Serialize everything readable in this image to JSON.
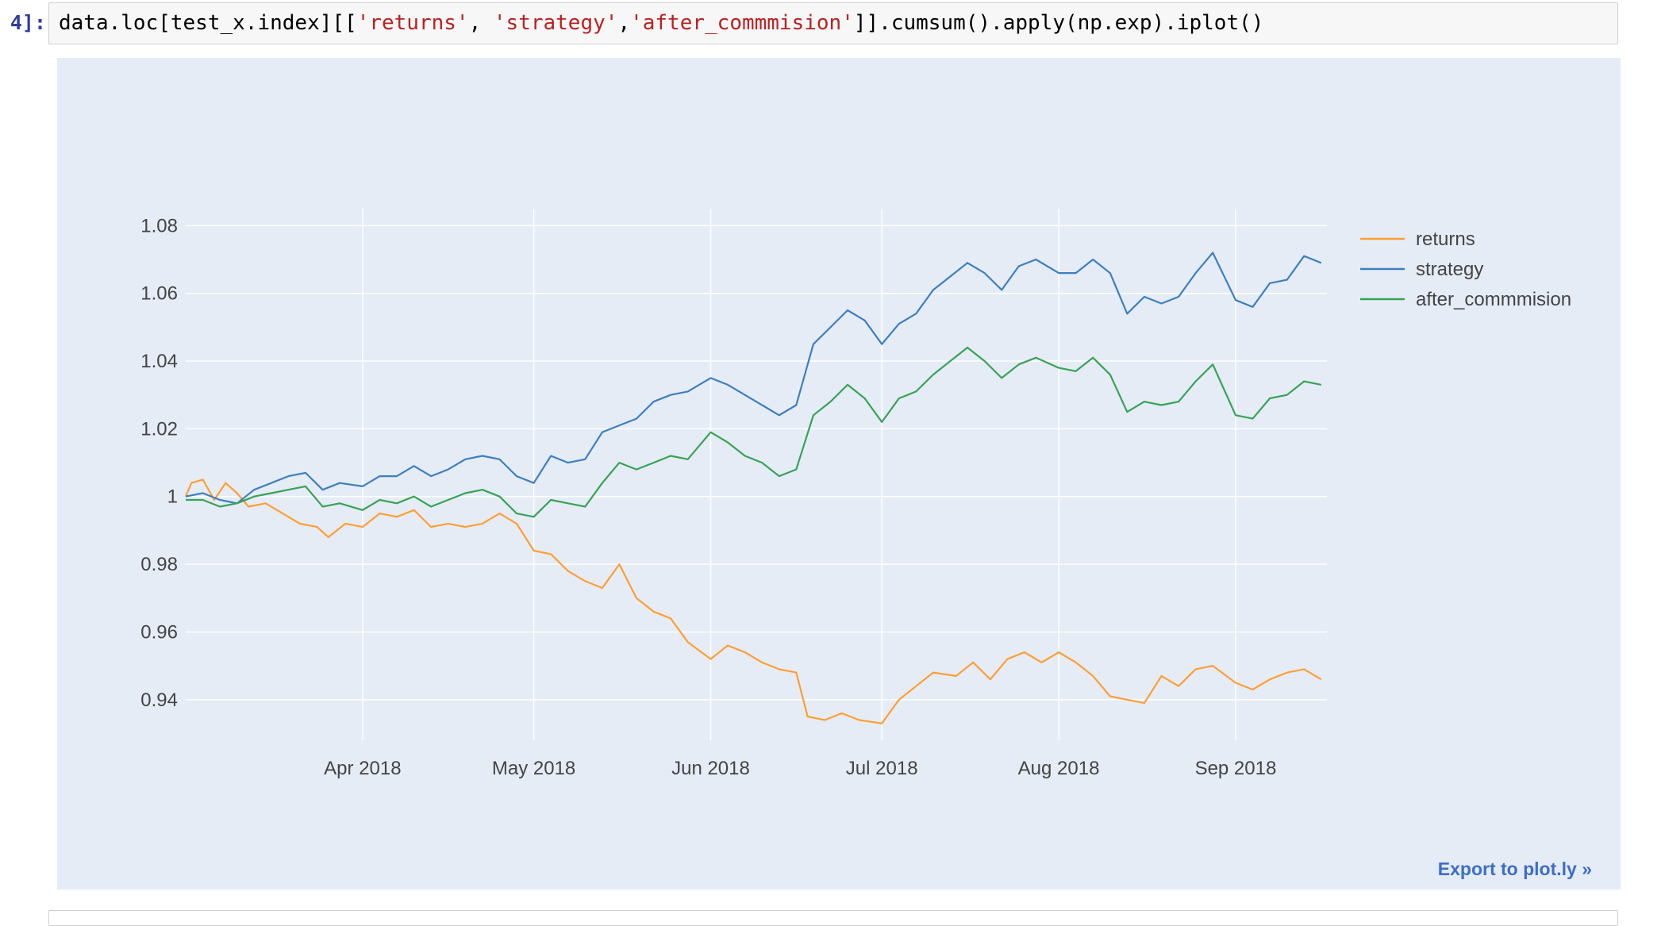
{
  "cell": {
    "prompt": "4]:",
    "code_parts": [
      {
        "text": "data.loc[test_x.index][[",
        "kind": "plain"
      },
      {
        "text": "'returns'",
        "kind": "str"
      },
      {
        "text": ", ",
        "kind": "plain"
      },
      {
        "text": "'strategy'",
        "kind": "str"
      },
      {
        "text": ",",
        "kind": "plain"
      },
      {
        "text": "'after_commmision'",
        "kind": "str"
      },
      {
        "text": "]].cumsum().apply(np.exp).iplot()",
        "kind": "plain"
      }
    ]
  },
  "export_label": "Export to plot.ly »",
  "colors": {
    "returns": "#ff9e33",
    "strategy": "#3d7fc0",
    "after_commmision": "#37a355",
    "plot_bg": "#e5ecf6",
    "grid": "#ffffff"
  },
  "chart_data": {
    "type": "line",
    "title": "",
    "xlabel": "",
    "ylabel": "",
    "x_range": [
      "2018-03-01",
      "2018-09-17"
    ],
    "ylim": [
      0.928,
      1.085
    ],
    "x_ticks": [
      {
        "date": "2018-04-01",
        "label": "Apr 2018"
      },
      {
        "date": "2018-05-01",
        "label": "May 2018"
      },
      {
        "date": "2018-06-01",
        "label": "Jun 2018"
      },
      {
        "date": "2018-07-01",
        "label": "Jul 2018"
      },
      {
        "date": "2018-08-01",
        "label": "Aug 2018"
      },
      {
        "date": "2018-09-01",
        "label": "Sep 2018"
      }
    ],
    "y_ticks": [
      {
        "value": 0.94,
        "label": "0.94"
      },
      {
        "value": 0.96,
        "label": "0.96"
      },
      {
        "value": 0.98,
        "label": "0.98"
      },
      {
        "value": 1.0,
        "label": "1"
      },
      {
        "value": 1.02,
        "label": "1.02"
      },
      {
        "value": 1.04,
        "label": "1.04"
      },
      {
        "value": 1.06,
        "label": "1.06"
      },
      {
        "value": 1.08,
        "label": "1.08"
      }
    ],
    "grid": true,
    "legend_position": "top-right",
    "series": [
      {
        "name": "returns",
        "points": [
          [
            "2018-03-01",
            1.0
          ],
          [
            "2018-03-02",
            1.004
          ],
          [
            "2018-03-04",
            1.005
          ],
          [
            "2018-03-06",
            0.999
          ],
          [
            "2018-03-08",
            1.004
          ],
          [
            "2018-03-10",
            1.001
          ],
          [
            "2018-03-12",
            0.997
          ],
          [
            "2018-03-15",
            0.998
          ],
          [
            "2018-03-18",
            0.995
          ],
          [
            "2018-03-21",
            0.992
          ],
          [
            "2018-03-24",
            0.991
          ],
          [
            "2018-03-26",
            0.988
          ],
          [
            "2018-03-29",
            0.992
          ],
          [
            "2018-04-01",
            0.991
          ],
          [
            "2018-04-04",
            0.995
          ],
          [
            "2018-04-07",
            0.994
          ],
          [
            "2018-04-10",
            0.996
          ],
          [
            "2018-04-13",
            0.991
          ],
          [
            "2018-04-16",
            0.992
          ],
          [
            "2018-04-19",
            0.991
          ],
          [
            "2018-04-22",
            0.992
          ],
          [
            "2018-04-25",
            0.995
          ],
          [
            "2018-04-28",
            0.992
          ],
          [
            "2018-05-01",
            0.984
          ],
          [
            "2018-05-04",
            0.983
          ],
          [
            "2018-05-07",
            0.978
          ],
          [
            "2018-05-10",
            0.975
          ],
          [
            "2018-05-13",
            0.973
          ],
          [
            "2018-05-16",
            0.98
          ],
          [
            "2018-05-19",
            0.97
          ],
          [
            "2018-05-22",
            0.966
          ],
          [
            "2018-05-25",
            0.964
          ],
          [
            "2018-05-28",
            0.957
          ],
          [
            "2018-06-01",
            0.952
          ],
          [
            "2018-06-04",
            0.956
          ],
          [
            "2018-06-07",
            0.954
          ],
          [
            "2018-06-10",
            0.951
          ],
          [
            "2018-06-13",
            0.949
          ],
          [
            "2018-06-16",
            0.948
          ],
          [
            "2018-06-18",
            0.935
          ],
          [
            "2018-06-21",
            0.934
          ],
          [
            "2018-06-24",
            0.936
          ],
          [
            "2018-06-27",
            0.934
          ],
          [
            "2018-07-01",
            0.933
          ],
          [
            "2018-07-04",
            0.94
          ],
          [
            "2018-07-07",
            0.944
          ],
          [
            "2018-07-10",
            0.948
          ],
          [
            "2018-07-14",
            0.947
          ],
          [
            "2018-07-17",
            0.951
          ],
          [
            "2018-07-20",
            0.946
          ],
          [
            "2018-07-23",
            0.952
          ],
          [
            "2018-07-26",
            0.954
          ],
          [
            "2018-07-29",
            0.951
          ],
          [
            "2018-08-01",
            0.954
          ],
          [
            "2018-08-04",
            0.951
          ],
          [
            "2018-08-07",
            0.947
          ],
          [
            "2018-08-10",
            0.941
          ],
          [
            "2018-08-13",
            0.94
          ],
          [
            "2018-08-16",
            0.939
          ],
          [
            "2018-08-19",
            0.947
          ],
          [
            "2018-08-22",
            0.944
          ],
          [
            "2018-08-25",
            0.949
          ],
          [
            "2018-08-28",
            0.95
          ],
          [
            "2018-09-01",
            0.945
          ],
          [
            "2018-09-04",
            0.943
          ],
          [
            "2018-09-07",
            0.946
          ],
          [
            "2018-09-10",
            0.948
          ],
          [
            "2018-09-13",
            0.949
          ],
          [
            "2018-09-16",
            0.946
          ]
        ]
      },
      {
        "name": "strategy",
        "points": [
          [
            "2018-03-01",
            1.0
          ],
          [
            "2018-03-04",
            1.001
          ],
          [
            "2018-03-07",
            0.999
          ],
          [
            "2018-03-10",
            0.998
          ],
          [
            "2018-03-13",
            1.002
          ],
          [
            "2018-03-16",
            1.004
          ],
          [
            "2018-03-19",
            1.006
          ],
          [
            "2018-03-22",
            1.007
          ],
          [
            "2018-03-25",
            1.002
          ],
          [
            "2018-03-28",
            1.004
          ],
          [
            "2018-04-01",
            1.003
          ],
          [
            "2018-04-04",
            1.006
          ],
          [
            "2018-04-07",
            1.006
          ],
          [
            "2018-04-10",
            1.009
          ],
          [
            "2018-04-13",
            1.006
          ],
          [
            "2018-04-16",
            1.008
          ],
          [
            "2018-04-19",
            1.011
          ],
          [
            "2018-04-22",
            1.012
          ],
          [
            "2018-04-25",
            1.011
          ],
          [
            "2018-04-28",
            1.006
          ],
          [
            "2018-05-01",
            1.004
          ],
          [
            "2018-05-04",
            1.012
          ],
          [
            "2018-05-07",
            1.01
          ],
          [
            "2018-05-10",
            1.011
          ],
          [
            "2018-05-13",
            1.019
          ],
          [
            "2018-05-16",
            1.021
          ],
          [
            "2018-05-19",
            1.023
          ],
          [
            "2018-05-22",
            1.028
          ],
          [
            "2018-05-25",
            1.03
          ],
          [
            "2018-05-28",
            1.031
          ],
          [
            "2018-06-01",
            1.035
          ],
          [
            "2018-06-04",
            1.033
          ],
          [
            "2018-06-07",
            1.03
          ],
          [
            "2018-06-10",
            1.027
          ],
          [
            "2018-06-13",
            1.024
          ],
          [
            "2018-06-16",
            1.027
          ],
          [
            "2018-06-19",
            1.045
          ],
          [
            "2018-06-22",
            1.05
          ],
          [
            "2018-06-25",
            1.055
          ],
          [
            "2018-06-28",
            1.052
          ],
          [
            "2018-07-01",
            1.045
          ],
          [
            "2018-07-04",
            1.051
          ],
          [
            "2018-07-07",
            1.054
          ],
          [
            "2018-07-10",
            1.061
          ],
          [
            "2018-07-13",
            1.065
          ],
          [
            "2018-07-16",
            1.069
          ],
          [
            "2018-07-19",
            1.066
          ],
          [
            "2018-07-22",
            1.061
          ],
          [
            "2018-07-25",
            1.068
          ],
          [
            "2018-07-28",
            1.07
          ],
          [
            "2018-08-01",
            1.066
          ],
          [
            "2018-08-04",
            1.066
          ],
          [
            "2018-08-07",
            1.07
          ],
          [
            "2018-08-10",
            1.066
          ],
          [
            "2018-08-13",
            1.054
          ],
          [
            "2018-08-16",
            1.059
          ],
          [
            "2018-08-19",
            1.057
          ],
          [
            "2018-08-22",
            1.059
          ],
          [
            "2018-08-25",
            1.066
          ],
          [
            "2018-08-28",
            1.072
          ],
          [
            "2018-09-01",
            1.058
          ],
          [
            "2018-09-04",
            1.056
          ],
          [
            "2018-09-07",
            1.063
          ],
          [
            "2018-09-10",
            1.064
          ],
          [
            "2018-09-13",
            1.071
          ],
          [
            "2018-09-16",
            1.069
          ]
        ]
      },
      {
        "name": "after_commmision",
        "points": [
          [
            "2018-03-01",
            0.999
          ],
          [
            "2018-03-04",
            0.999
          ],
          [
            "2018-03-07",
            0.997
          ],
          [
            "2018-03-10",
            0.998
          ],
          [
            "2018-03-13",
            1.0
          ],
          [
            "2018-03-16",
            1.001
          ],
          [
            "2018-03-19",
            1.002
          ],
          [
            "2018-03-22",
            1.003
          ],
          [
            "2018-03-25",
            0.997
          ],
          [
            "2018-03-28",
            0.998
          ],
          [
            "2018-04-01",
            0.996
          ],
          [
            "2018-04-04",
            0.999
          ],
          [
            "2018-04-07",
            0.998
          ],
          [
            "2018-04-10",
            1.0
          ],
          [
            "2018-04-13",
            0.997
          ],
          [
            "2018-04-16",
            0.999
          ],
          [
            "2018-04-19",
            1.001
          ],
          [
            "2018-04-22",
            1.002
          ],
          [
            "2018-04-25",
            1.0
          ],
          [
            "2018-04-28",
            0.995
          ],
          [
            "2018-05-01",
            0.994
          ],
          [
            "2018-05-04",
            0.999
          ],
          [
            "2018-05-07",
            0.998
          ],
          [
            "2018-05-10",
            0.997
          ],
          [
            "2018-05-13",
            1.004
          ],
          [
            "2018-05-16",
            1.01
          ],
          [
            "2018-05-19",
            1.008
          ],
          [
            "2018-05-22",
            1.01
          ],
          [
            "2018-05-25",
            1.012
          ],
          [
            "2018-05-28",
            1.011
          ],
          [
            "2018-06-01",
            1.019
          ],
          [
            "2018-06-04",
            1.016
          ],
          [
            "2018-06-07",
            1.012
          ],
          [
            "2018-06-10",
            1.01
          ],
          [
            "2018-06-13",
            1.006
          ],
          [
            "2018-06-16",
            1.008
          ],
          [
            "2018-06-19",
            1.024
          ],
          [
            "2018-06-22",
            1.028
          ],
          [
            "2018-06-25",
            1.033
          ],
          [
            "2018-06-28",
            1.029
          ],
          [
            "2018-07-01",
            1.022
          ],
          [
            "2018-07-04",
            1.029
          ],
          [
            "2018-07-07",
            1.031
          ],
          [
            "2018-07-10",
            1.036
          ],
          [
            "2018-07-13",
            1.04
          ],
          [
            "2018-07-16",
            1.044
          ],
          [
            "2018-07-19",
            1.04
          ],
          [
            "2018-07-22",
            1.035
          ],
          [
            "2018-07-25",
            1.039
          ],
          [
            "2018-07-28",
            1.041
          ],
          [
            "2018-08-01",
            1.038
          ],
          [
            "2018-08-04",
            1.037
          ],
          [
            "2018-08-07",
            1.041
          ],
          [
            "2018-08-10",
            1.036
          ],
          [
            "2018-08-13",
            1.025
          ],
          [
            "2018-08-16",
            1.028
          ],
          [
            "2018-08-19",
            1.027
          ],
          [
            "2018-08-22",
            1.028
          ],
          [
            "2018-08-25",
            1.034
          ],
          [
            "2018-08-28",
            1.039
          ],
          [
            "2018-09-01",
            1.024
          ],
          [
            "2018-09-04",
            1.023
          ],
          [
            "2018-09-07",
            1.029
          ],
          [
            "2018-09-10",
            1.03
          ],
          [
            "2018-09-13",
            1.034
          ],
          [
            "2018-09-16",
            1.033
          ]
        ]
      }
    ]
  }
}
